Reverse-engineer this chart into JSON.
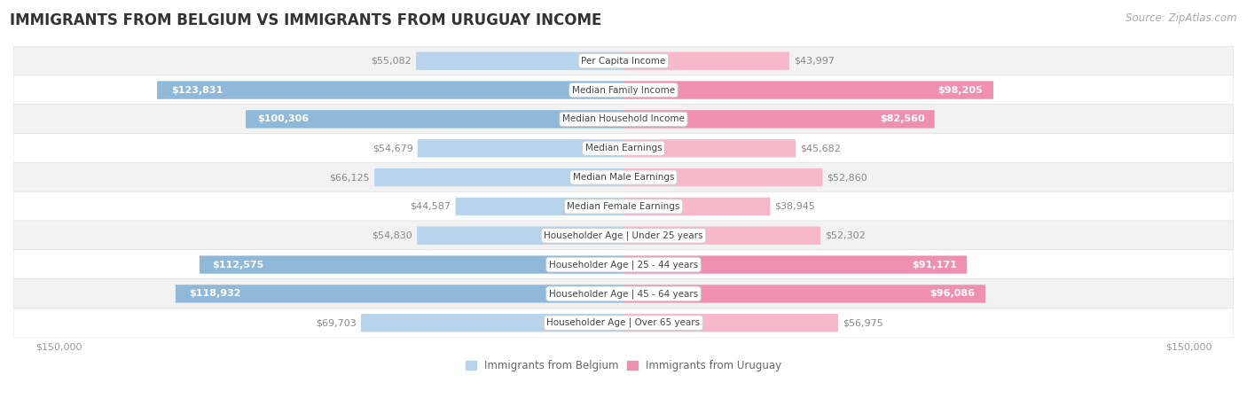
{
  "title": "IMMIGRANTS FROM BELGIUM VS IMMIGRANTS FROM URUGUAY INCOME",
  "source": "Source: ZipAtlas.com",
  "categories": [
    "Per Capita Income",
    "Median Family Income",
    "Median Household Income",
    "Median Earnings",
    "Median Male Earnings",
    "Median Female Earnings",
    "Householder Age | Under 25 years",
    "Householder Age | 25 - 44 years",
    "Householder Age | 45 - 64 years",
    "Householder Age | Over 65 years"
  ],
  "belgium_values": [
    55082,
    123831,
    100306,
    54679,
    66125,
    44587,
    54830,
    112575,
    118932,
    69703
  ],
  "uruguay_values": [
    43997,
    98205,
    82560,
    45682,
    52860,
    38945,
    52302,
    91171,
    96086,
    56975
  ],
  "belgium_color": "#90b8d8",
  "uruguay_color": "#f090b0",
  "belgium_color_light": "#b8d4ec",
  "uruguay_color_light": "#f8b8cc",
  "max_value": 150000,
  "bar_height": 0.62,
  "background_color": "#ffffff",
  "row_bg_even": "#f2f2f2",
  "row_bg_odd": "#ffffff",
  "title_fontsize": 12,
  "source_fontsize": 8.5,
  "bar_label_fontsize": 8,
  "category_fontsize": 7.5,
  "axis_label_fontsize": 8,
  "belgium_legend": "Immigrants from Belgium",
  "uruguay_legend": "Immigrants from Uruguay",
  "legend_fontsize": 8.5,
  "threshold_inside_label": 70000,
  "label_color_outside": "#999999",
  "label_color_inside": "#ffffff"
}
